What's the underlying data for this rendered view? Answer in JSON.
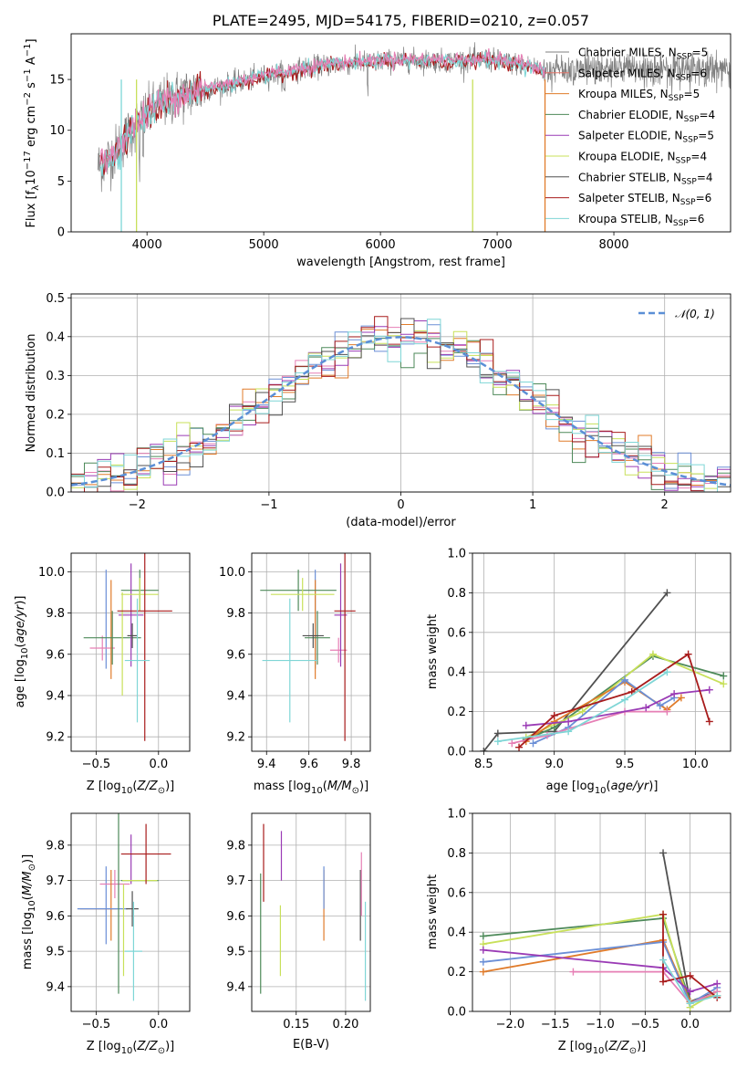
{
  "figure_title": "PLATE=2495, MJD=54175, FIBERID=0210, z=0.057",
  "colors": {
    "chabrier_miles": "#6b8fd6",
    "salpeter_miles": "#e6756a",
    "kroupa_miles": "#e07b2a",
    "chabrier_elodie": "#4e8a5a",
    "salpeter_elodie": "#9a3bb5",
    "kroupa_elodie": "#c8e05a",
    "chabrier_stelib": "#505050",
    "salpeter_stelib": "#a81c1c",
    "kroupa_stelib": "#7fd6d6",
    "pink": "#e67fb5",
    "normal_curve": "#5b8fd6"
  },
  "chart_data": [
    {
      "id": "spectrum",
      "type": "line",
      "title": "PLATE=2495, MJD=54175, FIBERID=0210, z=0.057",
      "xlabel": "wavelength [Angstrom, rest frame]",
      "ylabel": "Flux [f_λ 10^-17 erg cm^-2 s^-1 A^-1]",
      "xlim": [
        3350,
        9000
      ],
      "ylim": [
        0,
        19.5
      ],
      "xticks": [
        4000,
        5000,
        6000,
        7000,
        8000
      ],
      "yticks": [
        0,
        5,
        10,
        15
      ],
      "legend_position": "right",
      "legend": [
        {
          "label": "Chabrier MILES, N",
          "sub": "SSP",
          "val": "=5",
          "color": "#7f7f7f"
        },
        {
          "label": "Salpeter MILES, N",
          "sub": "SSP",
          "val": "=6",
          "color": "#e6756a"
        },
        {
          "label": "Kroupa MILES, N",
          "sub": "SSP",
          "val": "=5",
          "color": "#e07b2a"
        },
        {
          "label": "Chabrier ELODIE, N",
          "sub": "SSP",
          "val": "=4",
          "color": "#4e8a5a"
        },
        {
          "label": "Salpeter ELODIE, N",
          "sub": "SSP",
          "val": "=5",
          "color": "#9a3bb5"
        },
        {
          "label": "Kroupa ELODIE, N",
          "sub": "SSP",
          "val": "=4",
          "color": "#c8e05a"
        },
        {
          "label": "Chabrier STELIB, N",
          "sub": "SSP",
          "val": "=4",
          "color": "#505050"
        },
        {
          "label": "Salpeter STELIB, N",
          "sub": "SSP",
          "val": "=6",
          "color": "#a81c1c"
        },
        {
          "label": "Kroupa STELIB, N",
          "sub": "SSP",
          "val": "=6",
          "color": "#7fd6d6"
        }
      ],
      "continuum": {
        "x": [
          3600,
          3700,
          3800,
          3900,
          4000,
          4100,
          4300,
          4500,
          4800,
          5000,
          5300,
          5600,
          6000,
          6300,
          6600,
          6900,
          7200,
          7400
        ],
        "y": [
          6.5,
          7.5,
          9.0,
          10.5,
          11.5,
          12.5,
          13.5,
          14.0,
          14.8,
          15.3,
          16.0,
          16.5,
          16.8,
          16.9,
          16.8,
          17.0,
          16.5,
          16.0
        ]
      },
      "data_range": [
        3580,
        9000
      ]
    },
    {
      "id": "residuals",
      "type": "histogram",
      "xlabel": "(data-model)/error",
      "ylabel": "Normed distribution",
      "xlim": [
        -2.5,
        2.5
      ],
      "ylim": [
        0,
        0.51
      ],
      "xticks": [
        -2,
        -1,
        0,
        1,
        2
      ],
      "yticks": [
        0.0,
        0.1,
        0.2,
        0.3,
        0.4,
        0.5
      ],
      "legend": [
        {
          "label": "𝒩(0, 1)",
          "style": "dashed",
          "color": "#5b8fd6"
        }
      ],
      "legend_position": "top-right",
      "bin_width": 0.1
    },
    {
      "id": "age_vs_Z",
      "type": "errorbar",
      "xlabel": "Z [log₁₀(Z/Z☉)]",
      "ylabel": "age  [log₁₀(age/yr)]",
      "xlim": [
        -0.7,
        0.25
      ],
      "ylim": [
        9.13,
        10.09
      ],
      "xticks": [
        -0.5,
        0.0
      ],
      "yticks": [
        9.2,
        9.4,
        9.6,
        9.8,
        10.0
      ],
      "points": [
        {
          "x": -0.42,
          "xe": 0.0,
          "y": 9.77,
          "ye": 0.24,
          "color": "#6b8fd6"
        },
        {
          "x": -0.45,
          "xe": 0.1,
          "y": 9.63,
          "ye": 0.06,
          "color": "#e67fb5"
        },
        {
          "x": -0.38,
          "xe": 0.0,
          "y": 9.72,
          "ye": 0.24,
          "color": "#e07b2a"
        },
        {
          "x": -0.37,
          "xe": 0.23,
          "y": 9.68,
          "ye": 0.13,
          "color": "#4e8a5a"
        },
        {
          "x": -0.15,
          "xe": 0.15,
          "y": 9.91,
          "ye": 0.1,
          "color": "#4e8a5a"
        },
        {
          "x": -0.22,
          "xe": 0.1,
          "y": 9.79,
          "ye": 0.25,
          "color": "#9a3bb5"
        },
        {
          "x": -0.15,
          "xe": 0.15,
          "y": 9.89,
          "ye": 0.08,
          "color": "#c8e05a"
        },
        {
          "x": -0.29,
          "xe": 0.0,
          "y": 9.65,
          "ye": 0.25,
          "color": "#c8e05a"
        },
        {
          "x": -0.21,
          "xe": 0.04,
          "y": 9.69,
          "ye": 0.06,
          "color": "#505050"
        },
        {
          "x": -0.11,
          "xe": 0.22,
          "y": 9.81,
          "ye": 0.63,
          "color": "#a81c1c"
        },
        {
          "x": -0.17,
          "xe": 0.1,
          "y": 9.57,
          "ye": 0.3,
          "color": "#7fd6d6"
        }
      ]
    },
    {
      "id": "age_vs_mass",
      "type": "errorbar",
      "xlabel": "mass [log₁₀(M/M☉)]",
      "ylabel": "",
      "xlim": [
        9.33,
        9.89
      ],
      "ylim": [
        9.13,
        10.09
      ],
      "xticks": [
        9.4,
        9.6,
        9.8
      ],
      "yticks": [
        9.2,
        9.4,
        9.6,
        9.8,
        10.0
      ],
      "points": [
        {
          "x": 9.63,
          "xe": 0.0,
          "y": 9.77,
          "ye": 0.24,
          "color": "#6b8fd6"
        },
        {
          "x": 9.74,
          "xe": 0.04,
          "y": 9.62,
          "ye": 0.06,
          "color": "#e67fb5"
        },
        {
          "x": 9.63,
          "xe": 0.0,
          "y": 9.72,
          "ye": 0.24,
          "color": "#e07b2a"
        },
        {
          "x": 9.55,
          "xe": 0.18,
          "y": 9.91,
          "ye": 0.1,
          "color": "#4e8a5a"
        },
        {
          "x": 9.64,
          "xe": 0.06,
          "y": 9.68,
          "ye": 0.13,
          "color": "#4e8a5a"
        },
        {
          "x": 9.75,
          "xe": 0.03,
          "y": 9.79,
          "ye": 0.25,
          "color": "#9a3bb5"
        },
        {
          "x": 9.57,
          "xe": 0.15,
          "y": 9.89,
          "ye": 0.08,
          "color": "#c8e05a"
        },
        {
          "x": 9.62,
          "xe": 0.05,
          "y": 9.69,
          "ye": 0.06,
          "color": "#505050"
        },
        {
          "x": 9.77,
          "xe": 0.05,
          "y": 9.81,
          "ye": 0.63,
          "color": "#a81c1c"
        },
        {
          "x": 9.51,
          "xe": 0.13,
          "y": 9.57,
          "ye": 0.3,
          "color": "#7fd6d6"
        }
      ]
    },
    {
      "id": "weight_vs_age",
      "type": "line",
      "xlabel": "age  [log₁₀(age/yr)]",
      "ylabel": "mass weight",
      "xlim": [
        8.42,
        10.25
      ],
      "ylim": [
        0,
        1.0
      ],
      "xticks": [
        8.5,
        9.0,
        9.5,
        10.0
      ],
      "yticks": [
        0.0,
        0.2,
        0.4,
        0.6,
        0.8,
        1.0
      ],
      "series": [
        {
          "color": "#505050",
          "x": [
            8.5,
            8.6,
            9.0,
            9.8
          ],
          "y": [
            0.0,
            0.09,
            0.1,
            0.8
          ]
        },
        {
          "color": "#4e8a5a",
          "x": [
            8.8,
            9.0,
            9.7,
            10.2
          ],
          "y": [
            0.06,
            0.12,
            0.48,
            0.38
          ]
        },
        {
          "color": "#c8e05a",
          "x": [
            8.8,
            9.2,
            9.7,
            10.2
          ],
          "y": [
            0.07,
            0.2,
            0.49,
            0.34
          ]
        },
        {
          "color": "#e07b2a",
          "x": [
            8.8,
            9.0,
            9.5,
            9.8,
            9.9
          ],
          "y": [
            0.05,
            0.15,
            0.35,
            0.21,
            0.27
          ]
        },
        {
          "color": "#6b8fd6",
          "x": [
            8.85,
            9.1,
            9.5,
            9.75,
            9.85
          ],
          "y": [
            0.04,
            0.12,
            0.36,
            0.23,
            0.27
          ]
        },
        {
          "color": "#e67fb5",
          "x": [
            8.7,
            8.95,
            9.5,
            9.8
          ],
          "y": [
            0.04,
            0.08,
            0.2,
            0.2
          ]
        },
        {
          "color": "#9a3bb5",
          "x": [
            8.8,
            9.1,
            9.65,
            9.85,
            10.1
          ],
          "y": [
            0.13,
            0.15,
            0.22,
            0.29,
            0.31
          ]
        },
        {
          "color": "#a81c1c",
          "x": [
            8.75,
            9.0,
            9.55,
            9.95,
            10.1
          ],
          "y": [
            0.02,
            0.18,
            0.3,
            0.49,
            0.15
          ]
        },
        {
          "color": "#7fd6d6",
          "x": [
            8.6,
            9.1,
            9.5,
            9.8
          ],
          "y": [
            0.05,
            0.1,
            0.26,
            0.4
          ]
        }
      ]
    },
    {
      "id": "mass_vs_Z",
      "type": "errorbar",
      "xlabel": "Z [log₁₀(Z/Z☉)]",
      "ylabel": "mass [log₁₀(M/M☉)]",
      "xlim": [
        -0.7,
        0.25
      ],
      "ylim": [
        9.33,
        9.89
      ],
      "xticks": [
        -0.5,
        0.0
      ],
      "yticks": [
        9.4,
        9.5,
        9.6,
        9.7,
        9.8
      ],
      "points": [
        {
          "x": -0.42,
          "xe": 0.0,
          "y": 9.63,
          "ye": 0.11,
          "color": "#6b8fd6"
        },
        {
          "x": -0.35,
          "xe": 0.12,
          "y": 9.69,
          "ye": 0.04,
          "color": "#e67fb5"
        },
        {
          "x": -0.38,
          "xe": 0.0,
          "y": 9.63,
          "ye": 0.1,
          "color": "#e07b2a"
        },
        {
          "x": -0.48,
          "xe": 0.15,
          "y": 9.62,
          "ye": 0.0,
          "color": "#e07b2a"
        },
        {
          "x": -0.45,
          "xe": 0.2,
          "y": 9.62,
          "ye": 0.0,
          "color": "#6b8fd6"
        },
        {
          "x": -0.32,
          "xe": 0.0,
          "y": 9.65,
          "ye": 0.27,
          "color": "#4e8a5a"
        },
        {
          "x": -0.15,
          "xe": 0.15,
          "y": 9.7,
          "ye": 0.0,
          "color": "#4e8a5a"
        },
        {
          "x": -0.22,
          "xe": 0.0,
          "y": 9.76,
          "ye": 0.07,
          "color": "#9a3bb5"
        },
        {
          "x": -0.28,
          "xe": 0.0,
          "y": 9.56,
          "ye": 0.13,
          "color": "#c8e05a"
        },
        {
          "x": -0.15,
          "xe": 0.14,
          "y": 9.7,
          "ye": 0.0,
          "color": "#c8e05a"
        },
        {
          "x": -0.21,
          "xe": 0.05,
          "y": 9.62,
          "ye": 0.05,
          "color": "#505050"
        },
        {
          "x": -0.1,
          "xe": 0.2,
          "y": 9.775,
          "ye": 0.085,
          "color": "#a81c1c"
        },
        {
          "x": -0.2,
          "xe": 0.07,
          "y": 9.5,
          "ye": 0.14,
          "color": "#7fd6d6"
        }
      ]
    },
    {
      "id": "mass_vs_ebv",
      "type": "errorbar",
      "xlabel": "E(B-V)",
      "ylabel": "",
      "xlim": [
        0.105,
        0.225
      ],
      "ylim": [
        9.33,
        9.89
      ],
      "xticks": [
        0.15,
        0.2
      ],
      "yticks": [
        9.4,
        9.5,
        9.6,
        9.7,
        9.8
      ],
      "points": [
        {
          "x": 0.114,
          "xe": 0,
          "y": 9.55,
          "ye": 0.17,
          "color": "#4e8a5a"
        },
        {
          "x": 0.117,
          "xe": 0,
          "y": 9.75,
          "ye": 0.11,
          "color": "#a81c1c"
        },
        {
          "x": 0.134,
          "xe": 0,
          "y": 9.53,
          "ye": 0.1,
          "color": "#c8e05a"
        },
        {
          "x": 0.135,
          "xe": 0,
          "y": 9.77,
          "ye": 0.07,
          "color": "#9a3bb5"
        },
        {
          "x": 0.178,
          "xe": 0,
          "y": 9.63,
          "ye": 0.1,
          "color": "#e07b2a"
        },
        {
          "x": 0.178,
          "xe": 0,
          "y": 9.68,
          "ye": 0.06,
          "color": "#6b8fd6"
        },
        {
          "x": 0.215,
          "xe": 0,
          "y": 9.63,
          "ye": 0.1,
          "color": "#505050"
        },
        {
          "x": 0.216,
          "xe": 0,
          "y": 9.69,
          "ye": 0.09,
          "color": "#e67fb5"
        },
        {
          "x": 0.22,
          "xe": 0,
          "y": 9.5,
          "ye": 0.14,
          "color": "#7fd6d6"
        }
      ]
    },
    {
      "id": "weight_vs_Z",
      "type": "line",
      "xlabel": "Z [log₁₀(Z/Z☉)]",
      "ylabel": "mass weight",
      "xlim": [
        -2.42,
        0.45
      ],
      "ylim": [
        0,
        1.0
      ],
      "xticks": [
        -2.0,
        -1.5,
        -1.0,
        -0.5,
        0.0
      ],
      "yticks": [
        0.0,
        0.2,
        0.4,
        0.6,
        0.8,
        1.0
      ],
      "series": [
        {
          "color": "#505050",
          "x": [
            -0.3,
            0.0,
            0.3
          ],
          "y": [
            0.8,
            0.05,
            0.1
          ]
        },
        {
          "color": "#4e8a5a",
          "x": [
            -2.3,
            -0.3,
            0.0,
            0.3
          ],
          "y": [
            0.38,
            0.47,
            0.05,
            0.08
          ]
        },
        {
          "color": "#c8e05a",
          "x": [
            -2.3,
            -0.3,
            0.0,
            0.3
          ],
          "y": [
            0.34,
            0.49,
            0.02,
            0.1
          ]
        },
        {
          "color": "#e07b2a",
          "x": [
            -2.3,
            -0.3,
            0.0,
            0.3
          ],
          "y": [
            0.2,
            0.36,
            0.05,
            0.08
          ]
        },
        {
          "color": "#6b8fd6",
          "x": [
            -2.3,
            -0.3,
            0.0,
            0.3
          ],
          "y": [
            0.25,
            0.35,
            0.04,
            0.12
          ]
        },
        {
          "color": "#e67fb5",
          "x": [
            -1.3,
            -0.3,
            0.0,
            0.3
          ],
          "y": [
            0.2,
            0.2,
            0.04,
            0.1
          ]
        },
        {
          "color": "#9a3bb5",
          "x": [
            -2.3,
            -0.3,
            0.0,
            0.3
          ],
          "y": [
            0.31,
            0.22,
            0.1,
            0.14
          ]
        },
        {
          "color": "#a81c1c",
          "x": [
            -0.3,
            -0.3,
            0.0,
            0.3
          ],
          "y": [
            0.49,
            0.15,
            0.18,
            0.07
          ]
        },
        {
          "color": "#7fd6d6",
          "x": [
            -0.3,
            0.0,
            0.3
          ],
          "y": [
            0.26,
            0.04,
            0.08
          ]
        }
      ]
    }
  ]
}
